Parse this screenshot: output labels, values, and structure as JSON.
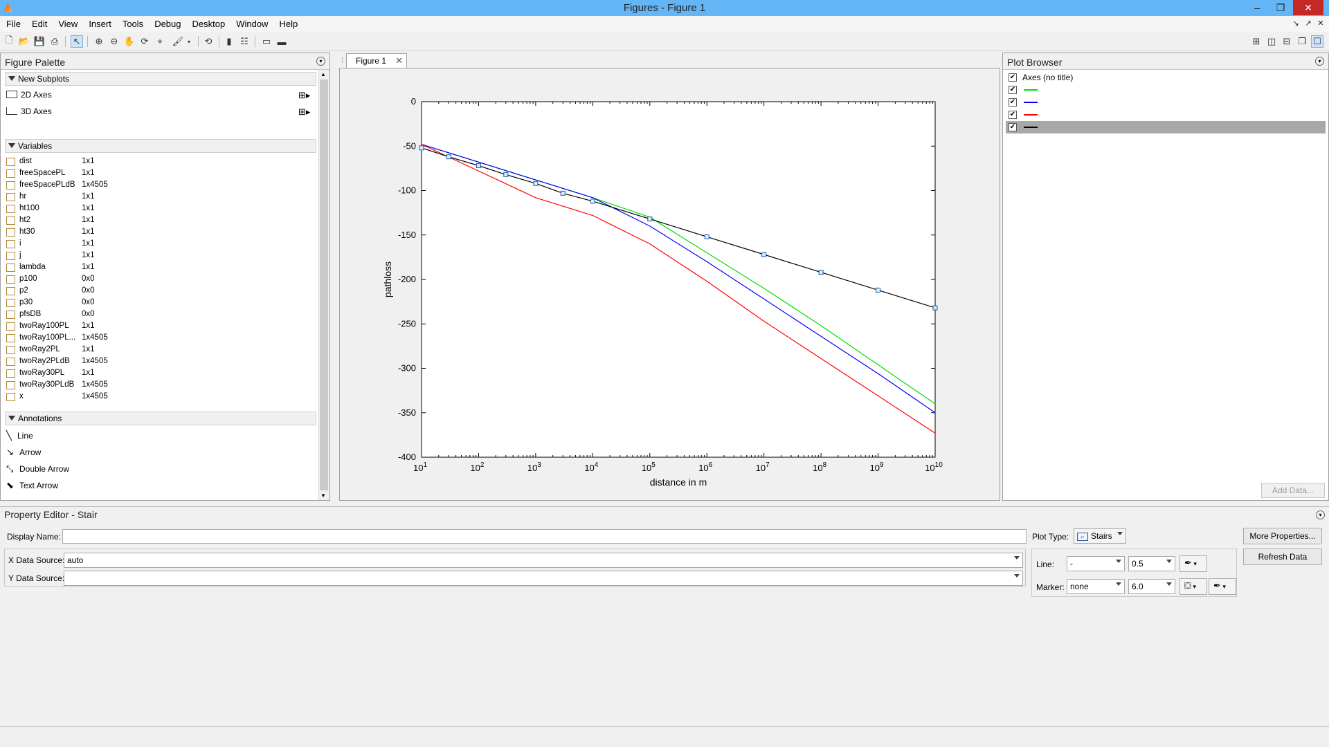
{
  "window": {
    "title": "Figures - Figure 1",
    "min": "–",
    "restore": "❐",
    "close": "✕"
  },
  "menu": [
    "File",
    "Edit",
    "View",
    "Insert",
    "Tools",
    "Debug",
    "Desktop",
    "Window",
    "Help"
  ],
  "palette": {
    "title": "Figure Palette",
    "new_subplots": {
      "label": "New Subplots",
      "items": [
        "2D Axes",
        "3D Axes"
      ]
    },
    "variables": {
      "label": "Variables",
      "items": [
        {
          "name": "dist",
          "size": "1x1"
        },
        {
          "name": "freeSpacePL",
          "size": "1x1"
        },
        {
          "name": "freeSpacePLdB",
          "size": "1x4505"
        },
        {
          "name": "hr",
          "size": "1x1"
        },
        {
          "name": "ht100",
          "size": "1x1"
        },
        {
          "name": "ht2",
          "size": "1x1"
        },
        {
          "name": "ht30",
          "size": "1x1"
        },
        {
          "name": "i",
          "size": "1x1"
        },
        {
          "name": "j",
          "size": "1x1"
        },
        {
          "name": "lambda",
          "size": "1x1"
        },
        {
          "name": "p100",
          "size": "0x0"
        },
        {
          "name": "p2",
          "size": "0x0"
        },
        {
          "name": "p30",
          "size": "0x0"
        },
        {
          "name": "pfsDB",
          "size": "0x0"
        },
        {
          "name": "twoRay100PL",
          "size": "1x1"
        },
        {
          "name": "twoRay100PL...",
          "size": "1x4505"
        },
        {
          "name": "twoRay2PL",
          "size": "1x1"
        },
        {
          "name": "twoRay2PLdB",
          "size": "1x4505"
        },
        {
          "name": "twoRay30PL",
          "size": "1x1"
        },
        {
          "name": "twoRay30PLdB",
          "size": "1x4505"
        },
        {
          "name": "x",
          "size": "1x4505"
        }
      ]
    },
    "annotations": {
      "label": "Annotations",
      "items": [
        "Line",
        "Arrow",
        "Double Arrow",
        "Text Arrow"
      ]
    }
  },
  "figure_tab": {
    "label": "Figure 1",
    "close": "✕"
  },
  "plot_browser": {
    "title": "Plot Browser",
    "axes_label": "Axes (no title)",
    "lines": [
      {
        "color": "#00dd00",
        "checked": true
      },
      {
        "color": "#0000ff",
        "checked": true
      },
      {
        "color": "#ff0000",
        "checked": true
      },
      {
        "color": "#000000",
        "checked": true
      }
    ],
    "add_data": "Add Data..."
  },
  "property_editor": {
    "title": "Property Editor - Stair",
    "display_name_label": "Display Name:",
    "display_name_value": "",
    "x_source_label": "X Data Source:",
    "x_source_value": "auto",
    "y_source_label": "Y Data Source:",
    "y_source_value": "",
    "plot_type_label": "Plot Type:",
    "plot_type_value": "Stairs",
    "line_label": "Line:",
    "line_style": "-",
    "line_width": "0.5",
    "marker_label": "Marker:",
    "marker_style": "none",
    "marker_size": "6.0",
    "more_properties": "More Properties...",
    "refresh_data": "Refresh Data"
  },
  "chart_data": {
    "type": "line",
    "title": "",
    "xlabel": "distance in m",
    "ylabel": "pathloss",
    "xscale": "log",
    "xlim": [
      10,
      10000000000
    ],
    "ylim": [
      -400,
      0
    ],
    "xticks": [
      "10^1",
      "10^2",
      "10^3",
      "10^4",
      "10^5",
      "10^6",
      "10^7",
      "10^8",
      "10^9",
      "10^10"
    ],
    "yticks": [
      "0",
      "-50",
      "-100",
      "-150",
      "-200",
      "-250",
      "-300",
      "-350",
      "-400"
    ],
    "series": [
      {
        "color": "#00dd00",
        "x": [
          10,
          10000,
          100000,
          1000000,
          10000000,
          100000000,
          1000000000,
          10000000000
        ],
        "y": [
          -48,
          -108,
          -130,
          -170,
          -210,
          -252,
          -296,
          -340
        ]
      },
      {
        "color": "#0000ff",
        "x": [
          10,
          10000,
          100000,
          1000000,
          10000000,
          100000000,
          1000000000,
          10000000000
        ],
        "y": [
          -48,
          -108,
          -140,
          -180,
          -222,
          -264,
          -306,
          -350
        ]
      },
      {
        "color": "#ff0000",
        "x": [
          10,
          1000,
          10000,
          100000,
          1000000,
          10000000,
          100000000,
          1000000000,
          10000000000
        ],
        "y": [
          -48,
          -108,
          -128,
          -160,
          -202,
          -247,
          -289,
          -331,
          -373
        ]
      },
      {
        "color": "#000000",
        "x": [
          10,
          30,
          100,
          300,
          1000,
          3000,
          10000,
          100000,
          1000000,
          10000000,
          100000000,
          1000000000,
          10000000000
        ],
        "y": [
          -52,
          -62,
          -72,
          -82,
          -92,
          -103,
          -112,
          -132,
          -152,
          -172,
          -192,
          -212,
          -232
        ]
      }
    ]
  }
}
